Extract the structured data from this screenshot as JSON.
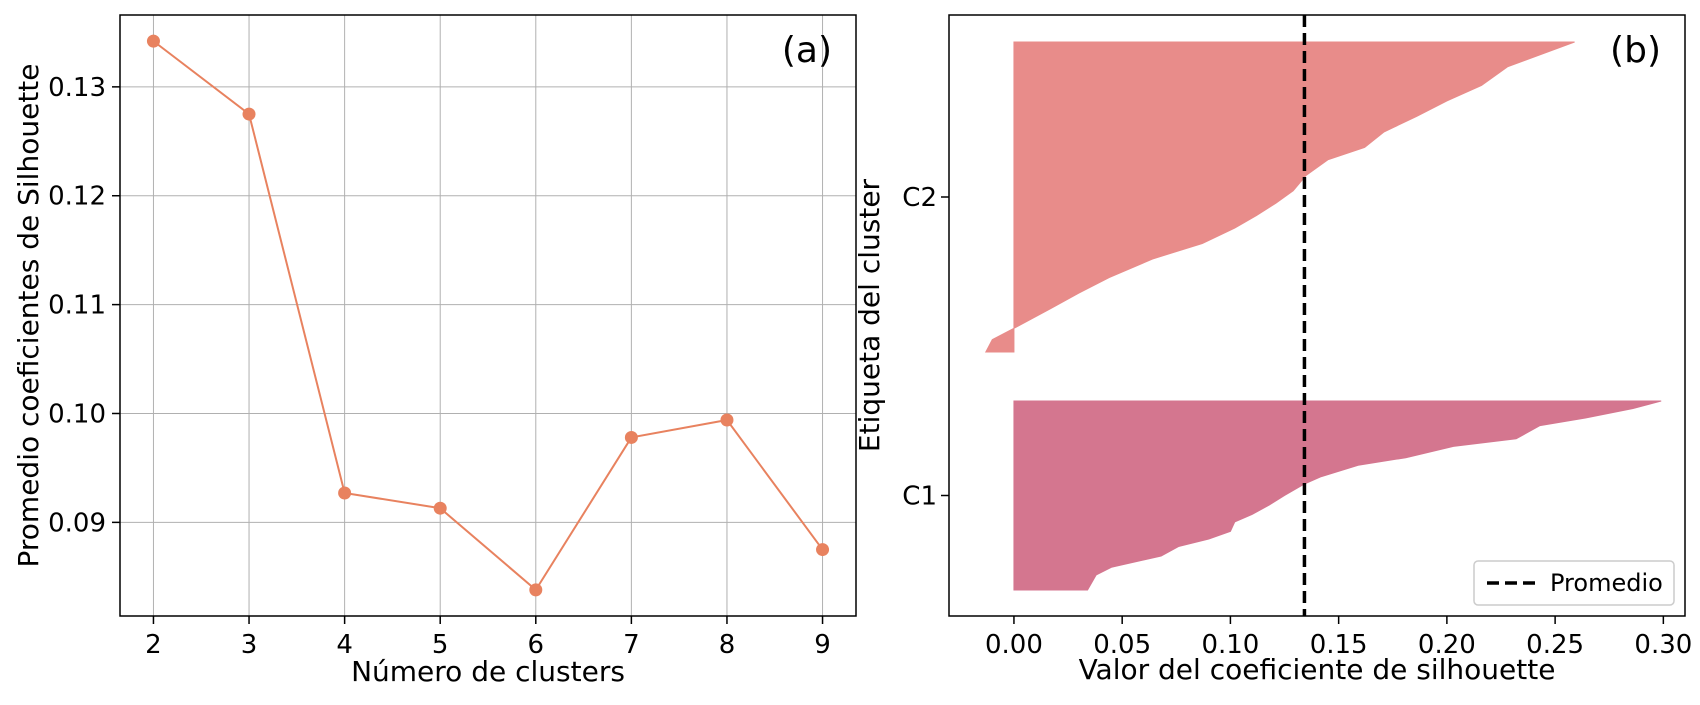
{
  "chart_data": [
    {
      "panel": "(a)",
      "type": "line",
      "xlabel": "Número de clusters",
      "ylabel": "Promedio coeficientes de Silhouette",
      "x": [
        2,
        3,
        4,
        5,
        6,
        7,
        8,
        9
      ],
      "y": [
        0.1342,
        0.1275,
        0.0927,
        0.0913,
        0.0838,
        0.0978,
        0.0994,
        0.0875
      ],
      "xticks": [
        "2",
        "3",
        "4",
        "5",
        "6",
        "7",
        "8",
        "9"
      ],
      "yticks": [
        "0.09",
        "0.10",
        "0.11",
        "0.12",
        "0.13"
      ],
      "xlim": [
        1.65,
        9.35
      ],
      "ylim": [
        0.0814,
        0.1366
      ],
      "grid": true,
      "color": "#e8825f"
    },
    {
      "panel": "(b)",
      "type": "area",
      "xlabel": "Valor del coeficiente de silhouette",
      "ylabel": "Etiqueta del cluster",
      "xticks": [
        "0.00",
        "0.05",
        "0.10",
        "0.15",
        "0.20",
        "0.25",
        "0.30"
      ],
      "xlim": [
        -0.03,
        0.31
      ],
      "clusters": [
        {
          "name": "C1",
          "color": "#d4768f",
          "profile": [
            [
              0.0,
              0.034
            ],
            [
              0.08,
              0.038
            ],
            [
              0.12,
              0.045
            ],
            [
              0.18,
              0.068
            ],
            [
              0.23,
              0.076
            ],
            [
              0.27,
              0.09
            ],
            [
              0.31,
              0.1
            ],
            [
              0.36,
              0.102
            ],
            [
              0.4,
              0.11
            ],
            [
              0.45,
              0.118
            ],
            [
              0.5,
              0.125
            ],
            [
              0.56,
              0.134
            ],
            [
              0.6,
              0.142
            ],
            [
              0.66,
              0.159
            ],
            [
              0.7,
              0.181
            ],
            [
              0.76,
              0.203
            ],
            [
              0.8,
              0.232
            ],
            [
              0.87,
              0.243
            ],
            [
              0.91,
              0.264
            ],
            [
              0.96,
              0.286
            ],
            [
              1.0,
              0.299
            ]
          ]
        },
        {
          "name": "C2",
          "color": "#e88c8a",
          "profile": [
            [
              0.0,
              -0.013
            ],
            [
              0.04,
              -0.01
            ],
            [
              0.08,
              0.001
            ],
            [
              0.14,
              0.017
            ],
            [
              0.19,
              0.03
            ],
            [
              0.24,
              0.044
            ],
            [
              0.3,
              0.064
            ],
            [
              0.35,
              0.087
            ],
            [
              0.4,
              0.102
            ],
            [
              0.44,
              0.112
            ],
            [
              0.48,
              0.121
            ],
            [
              0.52,
              0.129
            ],
            [
              0.57,
              0.135
            ],
            [
              0.62,
              0.145
            ],
            [
              0.66,
              0.162
            ],
            [
              0.71,
              0.171
            ],
            [
              0.76,
              0.186
            ],
            [
              0.81,
              0.2
            ],
            [
              0.86,
              0.216
            ],
            [
              0.92,
              0.228
            ],
            [
              1.0,
              0.259
            ]
          ]
        }
      ],
      "average_line": {
        "x": 0.1342,
        "style": "dashed",
        "color": "#000000"
      },
      "legend": {
        "label": "Promedio",
        "placement": "lower-right"
      }
    }
  ]
}
